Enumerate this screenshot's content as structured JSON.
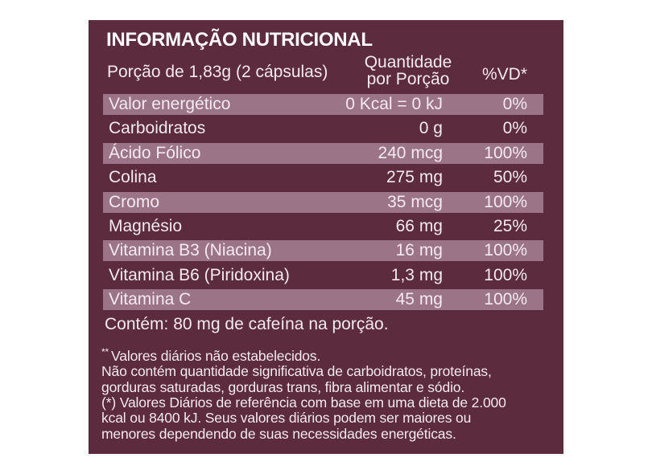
{
  "colors": {
    "page-bg": "#ffffff",
    "label-bg": "#5c2b3e",
    "bar-bg": "#9b7587",
    "text": "#f4e9ee",
    "title-text": "#fdfbfc"
  },
  "label": {
    "title": "INFORMAÇÃO NUTRICIONAL",
    "serving": "Porção de 1,83g  (2 cápsulas)",
    "columns": {
      "quantity_line1": "Quantidade",
      "quantity_line2": "por Porção",
      "daily_value": "%VD*"
    },
    "rows": [
      {
        "name": "Valor energético",
        "quantity": "0 Kcal = 0 kJ",
        "daily_value": "0%"
      },
      {
        "name": "Carboidratos",
        "quantity": "0 g",
        "daily_value": "0%"
      },
      {
        "name": "Ácido Fólico",
        "quantity": "240 mcg",
        "daily_value": "100%"
      },
      {
        "name": "Colina",
        "quantity": "275 mg",
        "daily_value": "50%"
      },
      {
        "name": "Cromo",
        "quantity": "35 mcg",
        "daily_value": "100%"
      },
      {
        "name": "Magnésio",
        "quantity": "66 mg",
        "daily_value": "25%"
      },
      {
        "name": "Vitamina B3 (Niacina)",
        "quantity": "16 mg",
        "daily_value": "100%"
      },
      {
        "name": "Vitamina B6 (Piridoxina)",
        "quantity": "1,3 mg",
        "daily_value": "100%"
      },
      {
        "name": "Vitamina C",
        "quantity": "45 mg",
        "daily_value": "100%"
      }
    ],
    "caffeine_note": "Contém: 80 mg de cafeína na porção.",
    "footnotes": {
      "marker": "**",
      "lines": [
        "Valores diários não estabelecidos.",
        "Não contém quantidade significativa de carboidratos, proteínas,",
        "gorduras saturadas, gorduras trans, fibra alimentar e sódio.",
        "(*) Valores Diários de referência com base em uma dieta de 2.000",
        "kcal ou 8400 kJ. Seus valores diários podem ser maiores ou",
        "menores dependendo de suas necessidades energéticas."
      ]
    }
  }
}
